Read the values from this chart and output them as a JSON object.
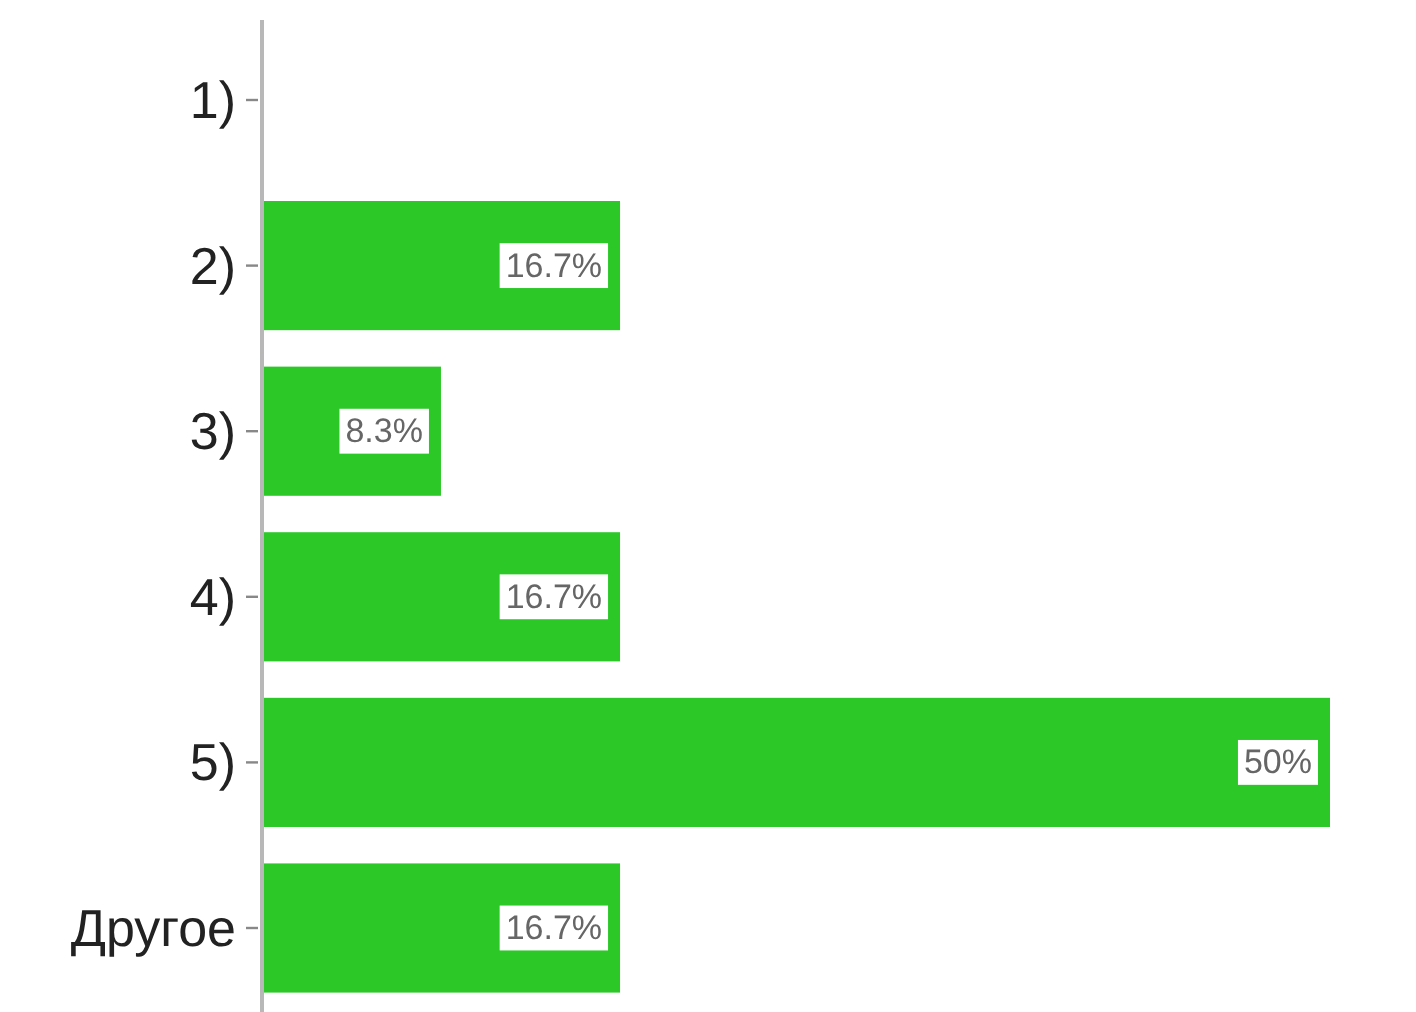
{
  "chart_data": {
    "type": "bar",
    "orientation": "horizontal",
    "categories": [
      "1)",
      "2)",
      "3)",
      "4)",
      "5)",
      "Другое"
    ],
    "values": [
      0,
      16.7,
      8.3,
      16.7,
      50,
      16.7
    ],
    "value_labels": [
      null,
      "16.7%",
      "8.3%",
      "16.7%",
      "50%",
      "16.7%"
    ],
    "color": "#2bc828"
  }
}
